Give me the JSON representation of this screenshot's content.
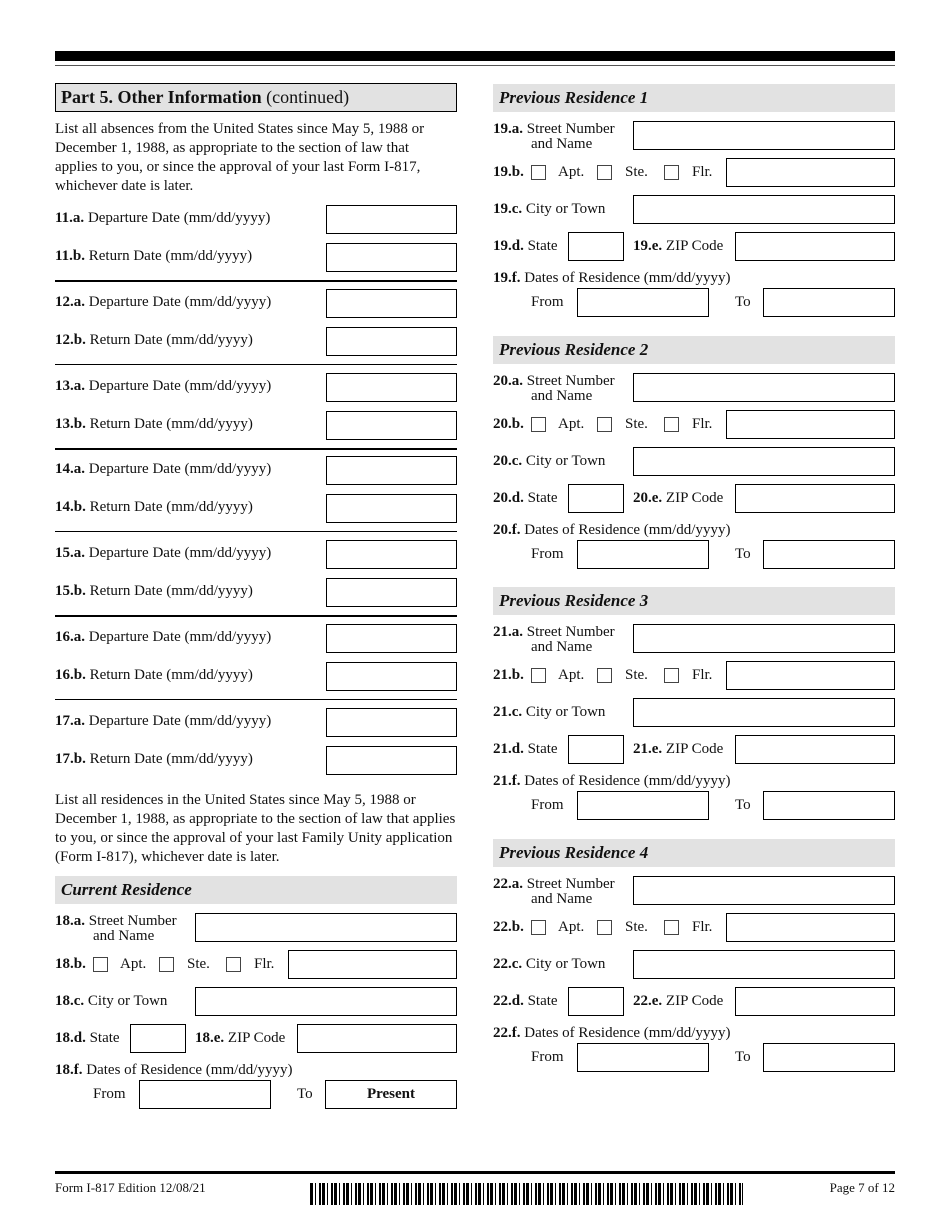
{
  "part_header": {
    "title": "Part 5.  Other Information",
    "suffix": "(continued)"
  },
  "absences_intro": "List all absences from the United States since May 5, 1988 or December 1, 1988, as appropriate to the section of law that applies to you, or since the approval of your last Form I-817, whichever date is later.",
  "absences": [
    {
      "dep_num": "11.a.",
      "ret_num": "11.b."
    },
    {
      "dep_num": "12.a.",
      "ret_num": "12.b."
    },
    {
      "dep_num": "13.a.",
      "ret_num": "13.b."
    },
    {
      "dep_num": "14.a.",
      "ret_num": "14.b."
    },
    {
      "dep_num": "15.a.",
      "ret_num": "15.b."
    },
    {
      "dep_num": "16.a.",
      "ret_num": "16.b."
    },
    {
      "dep_num": "17.a.",
      "ret_num": "17.b."
    }
  ],
  "departure_label": "Departure Date (mm/dd/yyyy)",
  "return_label": "Return Date (mm/dd/yyyy)",
  "residences_intro": "List all residences in the United States since May 5, 1988 or December 1, 1988, as appropriate to the section of law that applies to you, or since the approval of your last Family Unity application (Form I-817), whichever date is later.",
  "labels": {
    "street1": "Street Number",
    "street2": "and Name",
    "apt": "Apt.",
    "ste": "Ste.",
    "flr": "Flr.",
    "city": "City or Town",
    "state": "State",
    "zip": "ZIP Code",
    "dates": "Dates of Residence (mm/dd/yyyy)",
    "from": "From",
    "to": "To"
  },
  "current": {
    "title": "Current Residence",
    "nums": [
      "18.a.",
      "18.b.",
      "18.c.",
      "18.d.",
      "18.e.",
      "18.f."
    ],
    "present": "Present"
  },
  "previous": [
    {
      "title": "Previous Residence 1",
      "nums": [
        "19.a.",
        "19.b.",
        "19.c.",
        "19.d.",
        "19.e.",
        "19.f."
      ]
    },
    {
      "title": "Previous Residence 2",
      "nums": [
        "20.a.",
        "20.b.",
        "20.c.",
        "20.d.",
        "20.e.",
        "20.f."
      ]
    },
    {
      "title": "Previous Residence 3",
      "nums": [
        "21.a.",
        "21.b.",
        "21.c.",
        "21.d.",
        "21.e.",
        "21.f."
      ]
    },
    {
      "title": "Previous Residence 4",
      "nums": [
        "22.a.",
        "22.b.",
        "22.c.",
        "22.d.",
        "22.e.",
        "22.f."
      ]
    }
  ],
  "footer": {
    "form": "Form I-817  Edition  12/08/21",
    "page": "Page 7 of 12"
  }
}
